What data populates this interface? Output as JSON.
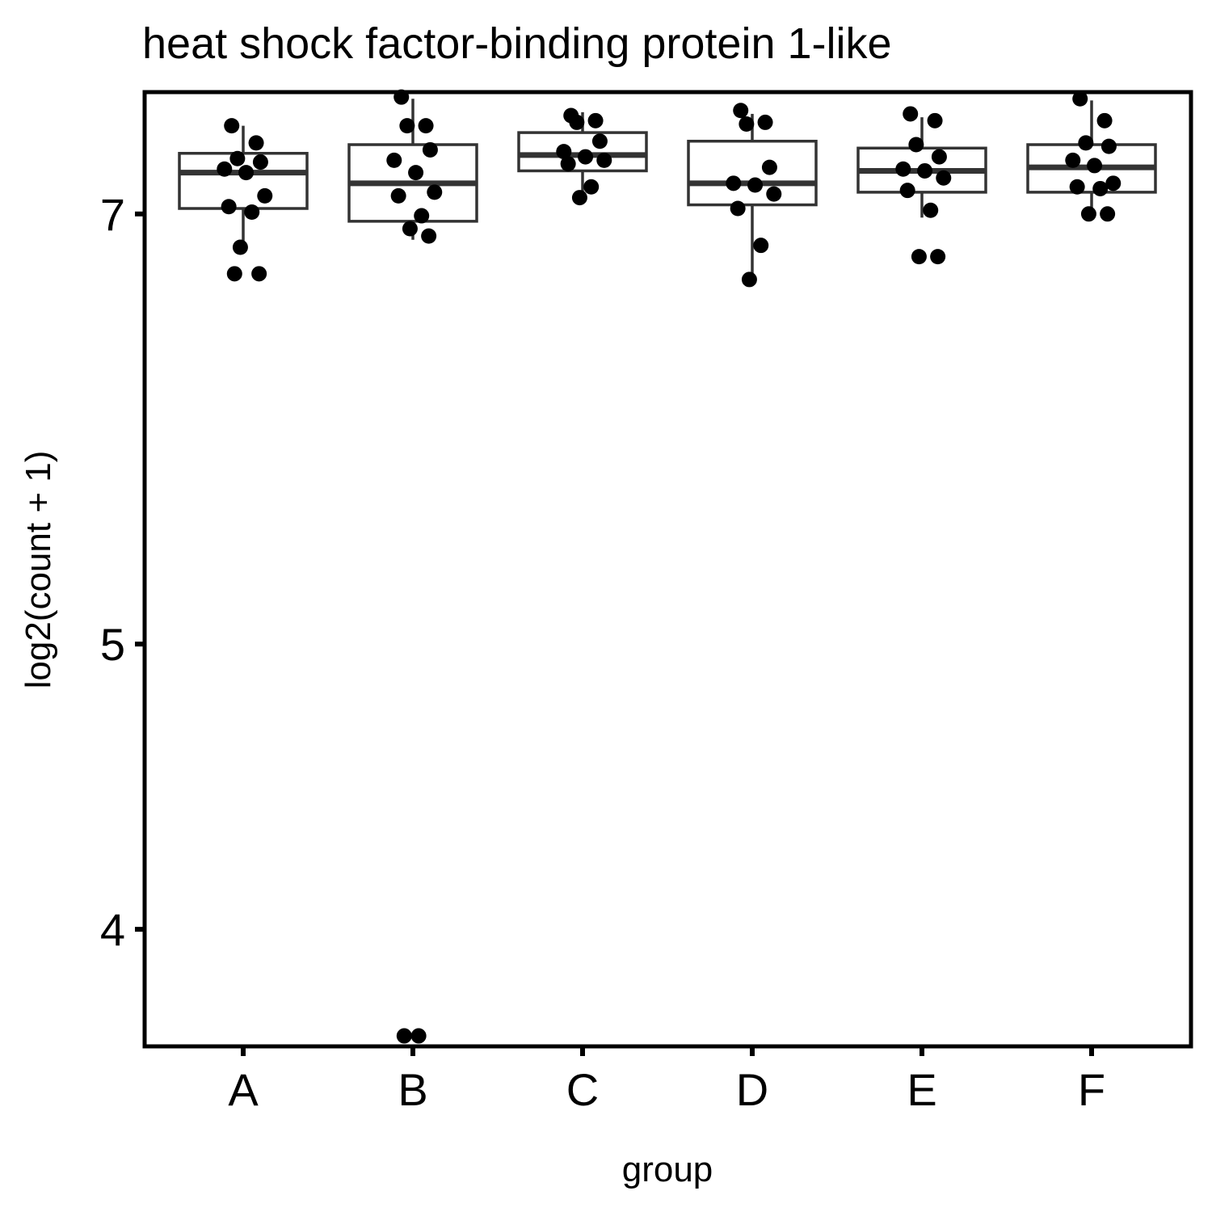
{
  "chart_data": {
    "type": "boxplot",
    "title": "heat shock factor-binding protein 1-like",
    "xlabel": "group",
    "ylabel": "log2(count + 1)",
    "y_scale": "log",
    "ylim": [
      3.65,
      7.7
    ],
    "y_ticks": [
      4,
      5,
      7
    ],
    "categories": [
      "A",
      "B",
      "C",
      "D",
      "E",
      "F"
    ],
    "boxes": [
      {
        "group": "A",
        "lower_whisker": 6.81,
        "q1": 7.03,
        "median": 7.23,
        "q3": 7.34,
        "upper_whisker": 7.5
      },
      {
        "group": "B",
        "lower_whisker": 6.86,
        "q1": 6.96,
        "median": 7.17,
        "q3": 7.39,
        "upper_whisker": 7.66
      },
      {
        "group": "C",
        "lower_whisker": 7.08,
        "q1": 7.24,
        "median": 7.33,
        "q3": 7.46,
        "upper_whisker": 7.58
      },
      {
        "group": "D",
        "lower_whisker": 6.66,
        "q1": 7.05,
        "median": 7.17,
        "q3": 7.41,
        "upper_whisker": 7.57
      },
      {
        "group": "E",
        "lower_whisker": 6.98,
        "q1": 7.12,
        "median": 7.24,
        "q3": 7.37,
        "upper_whisker": 7.55
      },
      {
        "group": "F",
        "lower_whisker": 6.99,
        "q1": 7.12,
        "median": 7.26,
        "q3": 7.39,
        "upper_whisker": 7.65
      }
    ],
    "points": [
      {
        "group": "A",
        "values": [
          7.5,
          7.4,
          7.31,
          7.29,
          7.25,
          7.23,
          7.1,
          7.04,
          7.01,
          6.82,
          6.68,
          6.68
        ]
      },
      {
        "group": "B",
        "values": [
          7.67,
          7.5,
          7.5,
          7.36,
          7.3,
          7.23,
          7.12,
          7.1,
          6.99,
          6.92,
          6.88,
          3.68,
          3.68
        ]
      },
      {
        "group": "C",
        "values": [
          7.56,
          7.53,
          7.52,
          7.41,
          7.35,
          7.32,
          7.3,
          7.28,
          7.15,
          7.09
        ]
      },
      {
        "group": "D",
        "values": [
          7.59,
          7.52,
          7.51,
          7.26,
          7.17,
          7.16,
          7.11,
          7.03,
          6.83,
          6.65
        ]
      },
      {
        "group": "E",
        "values": [
          7.57,
          7.53,
          7.39,
          7.32,
          7.25,
          7.24,
          7.2,
          7.13,
          7.02,
          6.77,
          6.77
        ]
      },
      {
        "group": "F",
        "values": [
          7.66,
          7.53,
          7.4,
          7.38,
          7.3,
          7.27,
          7.17,
          7.15,
          7.14,
          7.0,
          7.0
        ]
      }
    ],
    "grid": false,
    "legend": "none",
    "colors": {
      "point": "#000000",
      "box_line": "#333333",
      "axis": "#000000",
      "background": "#ffffff"
    }
  }
}
